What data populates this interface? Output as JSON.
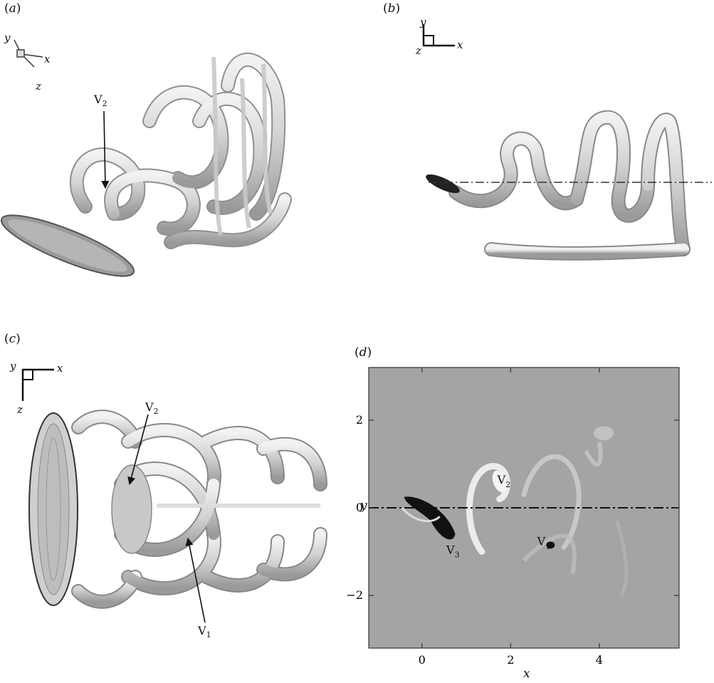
{
  "panels": {
    "a": {
      "label": "a",
      "axes": {
        "x": "x",
        "y": "y",
        "z": "z"
      },
      "annotations": [
        {
          "base": "V",
          "sub": "2"
        }
      ]
    },
    "b": {
      "label": "b",
      "axes": {
        "x": "x",
        "y": "y",
        "z": "z"
      }
    },
    "c": {
      "label": "c",
      "axes": {
        "x": "x",
        "y": "y",
        "z": "z"
      },
      "annotations": [
        {
          "base": "V",
          "sub": "2"
        },
        {
          "base": "V",
          "sub": "1"
        }
      ]
    },
    "d": {
      "label": "d",
      "annotations": [
        {
          "base": "V",
          "sub": "2"
        },
        {
          "base": "V",
          "sub": "1"
        },
        {
          "base": "V",
          "sub": "3"
        }
      ]
    }
  },
  "chart_data": {
    "type": "heatmap",
    "xlabel": "x",
    "ylabel": "y",
    "xlim": [
      -1.2,
      5.8
    ],
    "ylim": [
      -3.2,
      3.2
    ],
    "xticks": [
      0,
      2,
      4
    ],
    "yticks": [
      2,
      0,
      -2
    ],
    "xtick_labels": [
      "0",
      "2",
      "4"
    ],
    "ytick_labels": [
      "2",
      "0",
      "−2"
    ],
    "reference_line": {
      "y": 0,
      "style": "dash-dot"
    },
    "labels": [
      {
        "base": "V",
        "sub": "2",
        "x": 1.7,
        "y": 0.55
      },
      {
        "base": "V",
        "sub": "1",
        "x": 2.6,
        "y": -0.85
      },
      {
        "base": "V",
        "sub": "3",
        "x": 0.55,
        "y": -1.05
      }
    ],
    "colors": {
      "background": "#a4a4a4",
      "positive": "#f4f4f4",
      "negative": "#111111"
    }
  }
}
